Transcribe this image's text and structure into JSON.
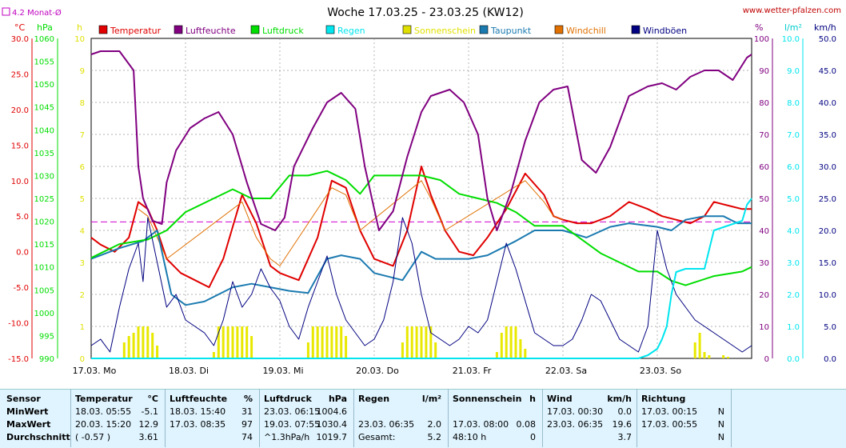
{
  "header": {
    "title": "Woche 17.03.25 - 23.03.25 (KW12)",
    "site": "www.wetter-pfalzen.com",
    "avg_marker": "4.2 Monat-Ø"
  },
  "axis_units": {
    "temp": "°C",
    "press": "hPa",
    "sun": "h",
    "hum": "%",
    "rain": "l/m²",
    "wind": "km/h"
  },
  "legend": [
    {
      "label": "Temperatur",
      "color": "#e00000"
    },
    {
      "label": "Luftfeuchte",
      "color": "#800080"
    },
    {
      "label": "Luftdruck",
      "color": "#00dd00"
    },
    {
      "label": "Regen",
      "color": "#00e5ee"
    },
    {
      "label": "Sonnenschein",
      "color": "#e0e000"
    },
    {
      "label": "Taupunkt",
      "color": "#1a7ab0"
    },
    {
      "label": "Windchill",
      "color": "#e07000"
    },
    {
      "label": "Windböen",
      "color": "#000080"
    }
  ],
  "chart_data": {
    "type": "line",
    "title": "Woche 17.03.25 - 23.03.25 (KW12)",
    "x_labels": [
      "17.03. Mo",
      "18.03. Di",
      "19.03. Mi",
      "20.03. Do",
      "21.03. Fr",
      "22.03. Sa",
      "23.03. So"
    ],
    "x_domain_days": [
      0,
      7
    ],
    "axes": {
      "temp": {
        "min": -15,
        "max": 30,
        "ticks": [
          "30.0",
          "25.0",
          "20.0",
          "15.0",
          "10.0",
          "5.0",
          "0.0",
          "-5.0",
          "-10.0",
          "-15.0"
        ],
        "color": "#e00000"
      },
      "press": {
        "min": 990,
        "max": 1060,
        "ticks": [
          "1060",
          "1055",
          "1050",
          "1045",
          "1040",
          "1035",
          "1030",
          "1025",
          "1020",
          "1015",
          "1010",
          "1005",
          "1000",
          "995",
          "990"
        ],
        "color": "#00dd00"
      },
      "sun": {
        "min": 0,
        "max": 10,
        "ticks": [
          "10",
          "9",
          "8",
          "7",
          "6",
          "5",
          "4",
          "3",
          "2",
          "1",
          "0"
        ],
        "color": "#e0e000"
      },
      "hum": {
        "min": 0,
        "max": 100,
        "ticks": [
          "100",
          "90",
          "80",
          "70",
          "60",
          "50",
          "40",
          "30",
          "20",
          "10",
          "0"
        ],
        "color": "#800080"
      },
      "rain": {
        "min": 0,
        "max": 10,
        "ticks": [
          "10.0",
          "9.0",
          "8.0",
          "7.0",
          "6.0",
          "5.0",
          "4.0",
          "3.0",
          "2.0",
          "1.0",
          "0.0"
        ],
        "color": "#00e5ee"
      },
      "wind": {
        "min": 0,
        "max": 50,
        "ticks": [
          "50.0",
          "45.0",
          "40.0",
          "35.0",
          "30.0",
          "25.0",
          "20.0",
          "15.0",
          "10.0",
          "5.0",
          "0.0"
        ],
        "color": "#000080"
      }
    },
    "month_avg_temp": 4.2,
    "series": [
      {
        "name": "Temperatur",
        "axis": "temp",
        "color": "#e00000",
        "x": [
          0,
          0.1,
          0.25,
          0.4,
          0.5,
          0.6,
          0.7,
          0.8,
          0.95,
          1.1,
          1.25,
          1.4,
          1.6,
          1.75,
          1.9,
          2.0,
          2.1,
          2.2,
          2.4,
          2.55,
          2.7,
          2.85,
          3.0,
          3.2,
          3.35,
          3.5,
          3.6,
          3.75,
          3.9,
          4.05,
          4.2,
          4.4,
          4.6,
          4.8,
          4.9,
          5.0,
          5.15,
          5.3,
          5.5,
          5.7,
          5.9,
          6.05,
          6.2,
          6.35,
          6.5,
          6.6,
          6.75,
          6.9,
          7.0
        ],
        "y": [
          2.0,
          1.0,
          0.0,
          2.0,
          7.0,
          6.0,
          3.0,
          -1.0,
          -3.0,
          -4.0,
          -5.0,
          -1.0,
          8.0,
          4.0,
          -2.0,
          -3.0,
          -3.5,
          -4.0,
          2.0,
          10.0,
          9.0,
          3.0,
          -1.0,
          -2.0,
          3.0,
          12.0,
          8.0,
          3.0,
          0.0,
          -0.5,
          2.0,
          6.0,
          11.0,
          8.0,
          5.0,
          4.5,
          4.0,
          4.0,
          5.0,
          7.0,
          6.0,
          5.0,
          4.5,
          4.0,
          5.0,
          7.0,
          6.5,
          6.0,
          6.0
        ]
      },
      {
        "name": "Windchill",
        "axis": "temp",
        "color": "#e07000",
        "x": [
          0.5,
          0.6,
          0.7,
          0.8,
          1.6,
          1.75,
          1.9,
          2.0,
          2.55,
          2.7,
          2.85,
          3.5,
          3.6,
          3.75,
          4.6,
          4.8,
          4.9,
          5.0
        ],
        "y": [
          6.0,
          5.0,
          2.0,
          -1.0,
          7.0,
          2.0,
          -1.0,
          -2.0,
          9.0,
          8.0,
          3.0,
          10.0,
          7.5,
          3.0,
          10.0,
          7.0,
          5.0,
          4.5
        ]
      },
      {
        "name": "Taupunkt",
        "axis": "temp",
        "color": "#1a7ab0",
        "x": [
          0,
          0.3,
          0.55,
          0.7,
          0.85,
          1.0,
          1.2,
          1.5,
          1.7,
          1.9,
          2.1,
          2.3,
          2.5,
          2.65,
          2.85,
          3.0,
          3.3,
          3.5,
          3.65,
          3.8,
          4.0,
          4.2,
          4.5,
          4.7,
          5.0,
          5.25,
          5.5,
          5.7,
          6.0,
          6.15,
          6.3,
          6.5,
          6.7,
          6.85,
          7.0
        ],
        "y": [
          -1.0,
          0.5,
          1.5,
          3.0,
          -6.0,
          -7.5,
          -7.0,
          -5.0,
          -4.5,
          -5.0,
          -5.5,
          -5.8,
          -1.0,
          -0.5,
          -1.0,
          -3.0,
          -4.0,
          0.0,
          -1.0,
          -1.0,
          -1.0,
          -0.5,
          1.5,
          3.0,
          3.0,
          2.0,
          3.5,
          4.0,
          3.5,
          3.0,
          4.5,
          5.0,
          5.0,
          4.0,
          4.0
        ]
      },
      {
        "name": "Luftdruck",
        "axis": "press",
        "color": "#00dd00",
        "x": [
          0,
          0.3,
          0.6,
          0.8,
          1.0,
          1.3,
          1.5,
          1.7,
          1.9,
          2.1,
          2.3,
          2.5,
          2.7,
          2.85,
          3.0,
          3.3,
          3.5,
          3.7,
          3.9,
          4.1,
          4.3,
          4.5,
          4.7,
          5.0,
          5.2,
          5.4,
          5.6,
          5.8,
          6.0,
          6.15,
          6.3,
          6.6,
          6.9,
          7.0
        ],
        "y": [
          1012,
          1015,
          1016,
          1018,
          1022,
          1025,
          1027,
          1025,
          1025,
          1030,
          1030,
          1031,
          1029,
          1026,
          1030,
          1030,
          1030,
          1029,
          1026,
          1025,
          1024,
          1022,
          1019,
          1019,
          1016,
          1013,
          1011,
          1009,
          1009,
          1007,
          1006,
          1008,
          1009,
          1010
        ]
      },
      {
        "name": "Luftfeuchte",
        "axis": "hum",
        "color": "#800080",
        "x": [
          0,
          0.1,
          0.3,
          0.45,
          0.5,
          0.55,
          0.65,
          0.75,
          0.8,
          0.9,
          1.05,
          1.2,
          1.35,
          1.5,
          1.65,
          1.8,
          1.95,
          2.05,
          2.15,
          2.35,
          2.5,
          2.65,
          2.8,
          2.9,
          3.05,
          3.2,
          3.35,
          3.5,
          3.6,
          3.8,
          3.95,
          4.1,
          4.2,
          4.3,
          4.45,
          4.6,
          4.75,
          4.9,
          5.05,
          5.2,
          5.35,
          5.5,
          5.7,
          5.9,
          6.05,
          6.2,
          6.35,
          6.5,
          6.65,
          6.8,
          6.95,
          7.0
        ],
        "y": [
          95,
          96,
          96,
          90,
          60,
          50,
          43,
          42,
          55,
          65,
          72,
          75,
          77,
          70,
          55,
          42,
          40,
          44,
          60,
          72,
          80,
          83,
          78,
          60,
          40,
          46,
          63,
          77,
          82,
          84,
          80,
          70,
          50,
          40,
          52,
          68,
          80,
          84,
          85,
          62,
          58,
          66,
          82,
          85,
          86,
          84,
          88,
          90,
          90,
          87,
          94,
          95
        ]
      },
      {
        "name": "Windböen",
        "axis": "wind",
        "color": "#000080",
        "x": [
          0,
          0.1,
          0.2,
          0.3,
          0.4,
          0.5,
          0.55,
          0.6,
          0.7,
          0.8,
          0.9,
          1.0,
          1.1,
          1.2,
          1.3,
          1.4,
          1.5,
          1.6,
          1.7,
          1.8,
          1.9,
          2.0,
          2.1,
          2.2,
          2.3,
          2.4,
          2.5,
          2.6,
          2.7,
          2.8,
          2.9,
          3.0,
          3.1,
          3.2,
          3.3,
          3.4,
          3.5,
          3.6,
          3.7,
          3.8,
          3.9,
          4.0,
          4.1,
          4.2,
          4.3,
          4.4,
          4.5,
          4.6,
          4.7,
          4.8,
          4.9,
          5.0,
          5.1,
          5.2,
          5.3,
          5.4,
          5.5,
          5.6,
          5.7,
          5.8,
          5.9,
          6.0,
          6.1,
          6.2,
          6.3,
          6.4,
          6.5,
          6.6,
          6.7,
          6.8,
          6.9,
          7.0
        ],
        "y": [
          2,
          3,
          1,
          8,
          14,
          18,
          12,
          22,
          15,
          8,
          10,
          6,
          5,
          4,
          2,
          6,
          12,
          8,
          10,
          14,
          11,
          9,
          5,
          3,
          8,
          12,
          16,
          10,
          6,
          4,
          2,
          3,
          6,
          12,
          22,
          18,
          10,
          4,
          3,
          2,
          3,
          5,
          4,
          6,
          12,
          18,
          14,
          9,
          4,
          3,
          2,
          2,
          3,
          6,
          10,
          9,
          6,
          3,
          2,
          1,
          5,
          20,
          14,
          10,
          8,
          6,
          5,
          4,
          3,
          2,
          1,
          2
        ]
      },
      {
        "name": "Regen",
        "axis": "rain",
        "color": "#00e5ee",
        "x": [
          0,
          5.8,
          5.9,
          6.0,
          6.05,
          6.1,
          6.15,
          6.2,
          6.3,
          6.4,
          6.5,
          6.6,
          6.7,
          6.8,
          6.9,
          6.95,
          7.0
        ],
        "y": [
          0,
          0,
          0.1,
          0.3,
          0.6,
          1.0,
          2.0,
          2.7,
          2.8,
          2.8,
          2.8,
          4.0,
          4.1,
          4.2,
          4.3,
          4.8,
          5.0
        ]
      }
    ],
    "sunshine_bars": [
      {
        "day": 0,
        "x": [
          0.35,
          0.4,
          0.45,
          0.5,
          0.55,
          0.6,
          0.65,
          0.7
        ],
        "y": [
          0.5,
          0.7,
          0.8,
          1.0,
          1.0,
          1.0,
          0.8,
          0.4
        ]
      },
      {
        "day": 1,
        "x": [
          1.3,
          1.35,
          1.4,
          1.45,
          1.5,
          1.55,
          1.6,
          1.65,
          1.7
        ],
        "y": [
          0.2,
          1.0,
          1.0,
          1.0,
          1.0,
          1.0,
          1.0,
          1.0,
          0.7
        ]
      },
      {
        "day": 2,
        "x": [
          2.3,
          2.35,
          2.4,
          2.45,
          2.5,
          2.55,
          2.6,
          2.65,
          2.7
        ],
        "y": [
          0.5,
          1.0,
          1.0,
          1.0,
          1.0,
          1.0,
          1.0,
          1.0,
          0.7
        ]
      },
      {
        "day": 3,
        "x": [
          3.3,
          3.35,
          3.4,
          3.45,
          3.5,
          3.55,
          3.6,
          3.65
        ],
        "y": [
          0.5,
          1.0,
          1.0,
          1.0,
          1.0,
          1.0,
          1.0,
          0.5
        ]
      },
      {
        "day": 4,
        "x": [
          4.3,
          4.35,
          4.4,
          4.45,
          4.5,
          4.55,
          4.6
        ],
        "y": [
          0.2,
          0.8,
          1.0,
          1.0,
          1.0,
          0.6,
          0.3
        ]
      },
      {
        "day": 6,
        "x": [
          6.4,
          6.45,
          6.5,
          6.55,
          6.7,
          6.75
        ],
        "y": [
          0.5,
          0.8,
          0.2,
          0.1,
          0.1,
          0.05
        ]
      }
    ]
  },
  "table": {
    "headers": {
      "sensor": "Sensor",
      "temp": "Temperatur",
      "temp_unit": "°C",
      "hum": "Luftfeuchte",
      "hum_unit": "%",
      "press": "Luftdruck",
      "press_unit": "hPa",
      "rain": "Regen",
      "rain_unit": "l/m²",
      "sun": "Sonnenschein",
      "sun_unit": "h",
      "wind": "Wind",
      "wind_unit": "km/h",
      "dir": "Richtung"
    },
    "rows": [
      {
        "label": "MinWert",
        "temp_t": "18.03.  05:55",
        "temp_v": "-5.1",
        "hum_t": "18.03.  15:40",
        "hum_v": "31",
        "press_t": "23.03.  06:15",
        "press_v": "1004.6",
        "rain_t": "",
        "rain_v": "",
        "sun_t": "",
        "sun_v": "",
        "wind_t": "17.03.  00:30",
        "wind_v": "0.0",
        "dir_t": "17.03.  00:15",
        "dir_v": "N"
      },
      {
        "label": "MaxWert",
        "temp_t": "20.03.  15:20",
        "temp_v": "12.9",
        "hum_t": "17.03.  08:35",
        "hum_v": "97",
        "press_t": "19.03.  07:55",
        "press_v": "1030.4",
        "rain_t": "23.03.  06:35",
        "rain_v": "2.0",
        "sun_t": "17.03.  08:00",
        "sun_v": "0.08",
        "wind_t": "23.03.  06:35",
        "wind_v": "19.6",
        "dir_t": "17.03.  00:55",
        "dir_v": "N"
      },
      {
        "label": "Durchschnitt",
        "temp_t": "( -0.57 )",
        "temp_v": "3.61",
        "hum_t": "",
        "hum_v": "74",
        "press_t": "^1.3hPa/h",
        "press_v": "1019.7",
        "rain_t": "Gesamt:",
        "rain_v": "5.2",
        "sun_t": "48:10 h",
        "sun_v": "0",
        "wind_t": "",
        "wind_v": "3.7",
        "dir_t": "",
        "dir_v": "N"
      }
    ]
  }
}
